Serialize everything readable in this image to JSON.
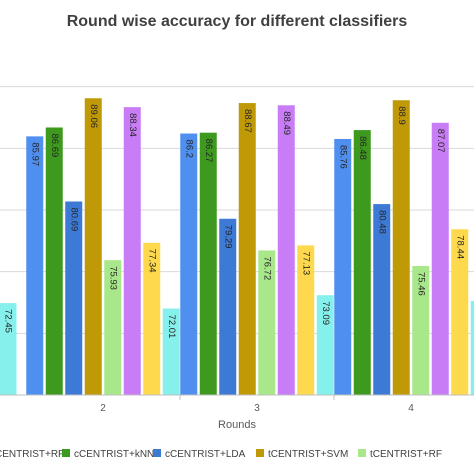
{
  "chart_data": {
    "type": "bar",
    "title": "Round wise accuracy for different classifiers",
    "xlabel": "Rounds",
    "ylabel": "",
    "categories": [
      "2",
      "3",
      "4"
    ],
    "ylim": [
      65,
      92
    ],
    "grid": true,
    "legend_position": "bottom",
    "series": [
      {
        "name": "cCENTRIST+RF",
        "color": "#4f8fef",
        "values": [
          85.97,
          86.2,
          85.76
        ]
      },
      {
        "name": "cCENTRIST+kNN",
        "color": "#3d9a1e",
        "values": [
          86.69,
          86.27,
          86.48
        ]
      },
      {
        "name": "cCENTRIST+LDA",
        "color": "#3d7ad6",
        "values": [
          80.69,
          79.29,
          80.48
        ]
      },
      {
        "name": "tCENTRIST+SVM",
        "color": "#c09a06",
        "values": [
          89.06,
          88.67,
          88.9
        ]
      },
      {
        "name": "tCENTRIST+RF",
        "color": "#a8e88a",
        "values": [
          75.93,
          76.72,
          75.46
        ]
      },
      {
        "name": "",
        "color": "#c87cf5",
        "values": [
          88.34,
          88.49,
          87.07
        ]
      },
      {
        "name": "",
        "color": "#ffd94d",
        "values": [
          77.34,
          77.13,
          78.44
        ]
      },
      {
        "name": "",
        "color": "#86f0ec",
        "values": [
          72.01,
          73.09,
          72.62
        ]
      }
    ],
    "partial_left_bar": {
      "value": 72.45,
      "color": "#86f0ec"
    }
  }
}
